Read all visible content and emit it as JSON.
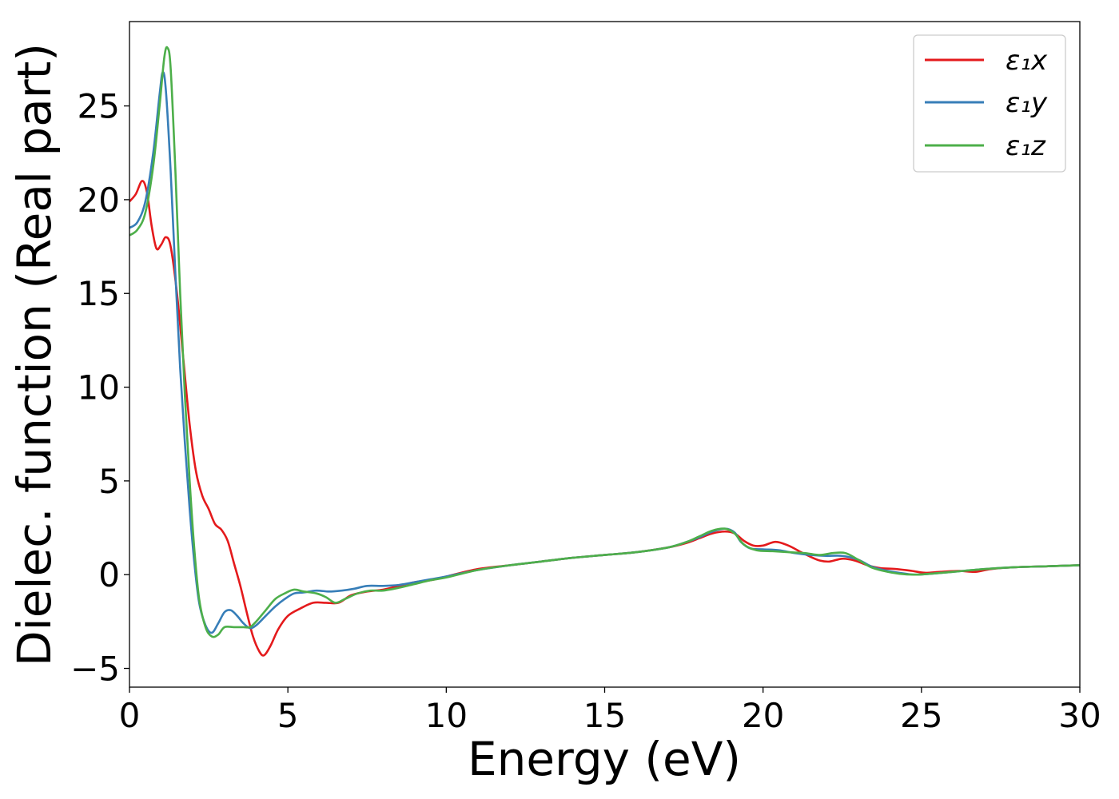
{
  "chart_data": {
    "type": "line",
    "xlabel": "Energy (eV)",
    "ylabel": "Dielec. function (Real part)",
    "xlim": [
      0,
      30
    ],
    "ylim": [
      -6,
      29.5
    ],
    "xticks": [
      0,
      5,
      10,
      15,
      20,
      25,
      30
    ],
    "xtick_labels": [
      "0",
      "5",
      "10",
      "15",
      "20",
      "25",
      "30"
    ],
    "yticks": [
      -5,
      0,
      5,
      10,
      15,
      20,
      25
    ],
    "ytick_labels": [
      "−5",
      "0",
      "5",
      "10",
      "15",
      "20",
      "25"
    ],
    "grid": false,
    "legend": "top-right",
    "series": [
      {
        "name": "ε₁x",
        "color": "#e41a1c",
        "points": [
          [
            0,
            19.9
          ],
          [
            0.2,
            20.3
          ],
          [
            0.4,
            21.0
          ],
          [
            0.55,
            20.4
          ],
          [
            0.7,
            18.6
          ],
          [
            0.85,
            17.4
          ],
          [
            1.0,
            17.6
          ],
          [
            1.15,
            18.0
          ],
          [
            1.3,
            17.5
          ],
          [
            1.5,
            15.0
          ],
          [
            1.7,
            11.5
          ],
          [
            1.9,
            8.0
          ],
          [
            2.1,
            5.5
          ],
          [
            2.3,
            4.2
          ],
          [
            2.5,
            3.5
          ],
          [
            2.7,
            2.7
          ],
          [
            2.9,
            2.4
          ],
          [
            3.1,
            1.8
          ],
          [
            3.3,
            0.6
          ],
          [
            3.5,
            -0.6
          ],
          [
            3.7,
            -2.0
          ],
          [
            3.9,
            -3.3
          ],
          [
            4.1,
            -4.1
          ],
          [
            4.25,
            -4.3
          ],
          [
            4.45,
            -3.8
          ],
          [
            4.7,
            -2.9
          ],
          [
            5.0,
            -2.2
          ],
          [
            5.4,
            -1.8
          ],
          [
            5.8,
            -1.5
          ],
          [
            6.2,
            -1.5
          ],
          [
            6.6,
            -1.5
          ],
          [
            7.0,
            -1.1
          ],
          [
            7.5,
            -0.9
          ],
          [
            8.0,
            -0.8
          ],
          [
            8.5,
            -0.6
          ],
          [
            9.0,
            -0.4
          ],
          [
            9.5,
            -0.3
          ],
          [
            10.0,
            -0.1
          ],
          [
            11.0,
            0.3
          ],
          [
            12.0,
            0.5
          ],
          [
            13.0,
            0.7
          ],
          [
            14.0,
            0.9
          ],
          [
            15.0,
            1.05
          ],
          [
            16.0,
            1.2
          ],
          [
            17.0,
            1.45
          ],
          [
            17.6,
            1.7
          ],
          [
            18.0,
            1.95
          ],
          [
            18.4,
            2.2
          ],
          [
            18.8,
            2.3
          ],
          [
            19.1,
            2.2
          ],
          [
            19.4,
            1.8
          ],
          [
            19.7,
            1.55
          ],
          [
            20.0,
            1.55
          ],
          [
            20.4,
            1.75
          ],
          [
            20.8,
            1.55
          ],
          [
            21.2,
            1.2
          ],
          [
            21.5,
            0.95
          ],
          [
            21.8,
            0.75
          ],
          [
            22.1,
            0.7
          ],
          [
            22.5,
            0.85
          ],
          [
            22.9,
            0.75
          ],
          [
            23.3,
            0.5
          ],
          [
            23.7,
            0.35
          ],
          [
            24.2,
            0.3
          ],
          [
            24.7,
            0.2
          ],
          [
            25.1,
            0.1
          ],
          [
            25.6,
            0.15
          ],
          [
            26.2,
            0.2
          ],
          [
            26.7,
            0.15
          ],
          [
            27.2,
            0.3
          ],
          [
            28.0,
            0.4
          ],
          [
            29.0,
            0.45
          ],
          [
            30.0,
            0.5
          ]
        ]
      },
      {
        "name": "ε₁y",
        "color": "#377eb8",
        "points": [
          [
            0,
            18.5
          ],
          [
            0.25,
            18.8
          ],
          [
            0.5,
            19.9
          ],
          [
            0.75,
            22.5
          ],
          [
            0.95,
            25.6
          ],
          [
            1.05,
            26.8
          ],
          [
            1.15,
            25.8
          ],
          [
            1.3,
            21.5
          ],
          [
            1.45,
            16.0
          ],
          [
            1.6,
            11.0
          ],
          [
            1.75,
            7.0
          ],
          [
            1.9,
            3.5
          ],
          [
            2.05,
            0.6
          ],
          [
            2.2,
            -1.5
          ],
          [
            2.4,
            -2.7
          ],
          [
            2.6,
            -3.1
          ],
          [
            2.8,
            -2.6
          ],
          [
            3.0,
            -2.0
          ],
          [
            3.2,
            -1.9
          ],
          [
            3.4,
            -2.2
          ],
          [
            3.6,
            -2.6
          ],
          [
            3.8,
            -2.85
          ],
          [
            4.0,
            -2.7
          ],
          [
            4.3,
            -2.2
          ],
          [
            4.6,
            -1.7
          ],
          [
            4.9,
            -1.3
          ],
          [
            5.2,
            -1.0
          ],
          [
            5.5,
            -0.95
          ],
          [
            5.9,
            -0.85
          ],
          [
            6.3,
            -0.9
          ],
          [
            6.7,
            -0.85
          ],
          [
            7.1,
            -0.75
          ],
          [
            7.5,
            -0.6
          ],
          [
            8.0,
            -0.6
          ],
          [
            8.5,
            -0.55
          ],
          [
            9.0,
            -0.4
          ],
          [
            9.5,
            -0.25
          ],
          [
            10.0,
            -0.1
          ],
          [
            11.0,
            0.25
          ],
          [
            12.0,
            0.5
          ],
          [
            13.0,
            0.7
          ],
          [
            14.0,
            0.9
          ],
          [
            15.0,
            1.05
          ],
          [
            16.0,
            1.2
          ],
          [
            17.0,
            1.45
          ],
          [
            17.6,
            1.75
          ],
          [
            18.0,
            2.0
          ],
          [
            18.4,
            2.3
          ],
          [
            18.8,
            2.45
          ],
          [
            19.1,
            2.25
          ],
          [
            19.3,
            1.75
          ],
          [
            19.6,
            1.4
          ],
          [
            20.0,
            1.35
          ],
          [
            20.5,
            1.3
          ],
          [
            21.0,
            1.15
          ],
          [
            21.5,
            1.05
          ],
          [
            22.0,
            1.0
          ],
          [
            22.5,
            1.0
          ],
          [
            23.0,
            0.8
          ],
          [
            23.4,
            0.45
          ],
          [
            23.8,
            0.25
          ],
          [
            24.3,
            0.1
          ],
          [
            24.8,
            0.0
          ],
          [
            25.3,
            0.05
          ],
          [
            26.0,
            0.15
          ],
          [
            27.0,
            0.3
          ],
          [
            28.0,
            0.4
          ],
          [
            29.0,
            0.45
          ],
          [
            30.0,
            0.5
          ]
        ]
      },
      {
        "name": "ε₁z",
        "color": "#4daf4a",
        "points": [
          [
            0,
            18.1
          ],
          [
            0.25,
            18.4
          ],
          [
            0.5,
            19.3
          ],
          [
            0.75,
            21.8
          ],
          [
            0.95,
            25.0
          ],
          [
            1.1,
            27.6
          ],
          [
            1.2,
            28.1
          ],
          [
            1.3,
            27.0
          ],
          [
            1.45,
            21.5
          ],
          [
            1.6,
            15.0
          ],
          [
            1.75,
            9.5
          ],
          [
            1.9,
            5.0
          ],
          [
            2.05,
            1.3
          ],
          [
            2.2,
            -1.3
          ],
          [
            2.4,
            -2.8
          ],
          [
            2.6,
            -3.3
          ],
          [
            2.8,
            -3.2
          ],
          [
            3.0,
            -2.8
          ],
          [
            3.3,
            -2.8
          ],
          [
            3.6,
            -2.8
          ],
          [
            3.8,
            -2.8
          ],
          [
            4.0,
            -2.5
          ],
          [
            4.3,
            -1.9
          ],
          [
            4.6,
            -1.3
          ],
          [
            4.9,
            -1.0
          ],
          [
            5.2,
            -0.8
          ],
          [
            5.5,
            -0.9
          ],
          [
            5.9,
            -1.0
          ],
          [
            6.2,
            -1.2
          ],
          [
            6.5,
            -1.5
          ],
          [
            6.8,
            -1.3
          ],
          [
            7.2,
            -1.0
          ],
          [
            7.6,
            -0.85
          ],
          [
            8.0,
            -0.85
          ],
          [
            8.5,
            -0.7
          ],
          [
            9.0,
            -0.5
          ],
          [
            9.5,
            -0.3
          ],
          [
            10.0,
            -0.15
          ],
          [
            11.0,
            0.25
          ],
          [
            12.0,
            0.5
          ],
          [
            13.0,
            0.7
          ],
          [
            14.0,
            0.9
          ],
          [
            15.0,
            1.05
          ],
          [
            16.0,
            1.2
          ],
          [
            17.0,
            1.45
          ],
          [
            17.6,
            1.75
          ],
          [
            18.0,
            2.05
          ],
          [
            18.4,
            2.35
          ],
          [
            18.8,
            2.45
          ],
          [
            19.1,
            2.2
          ],
          [
            19.4,
            1.6
          ],
          [
            19.8,
            1.3
          ],
          [
            20.3,
            1.25
          ],
          [
            20.8,
            1.2
          ],
          [
            21.3,
            1.15
          ],
          [
            21.8,
            1.05
          ],
          [
            22.2,
            1.15
          ],
          [
            22.6,
            1.15
          ],
          [
            23.0,
            0.8
          ],
          [
            23.4,
            0.4
          ],
          [
            23.8,
            0.2
          ],
          [
            24.3,
            0.05
          ],
          [
            24.8,
            0.0
          ],
          [
            25.3,
            0.05
          ],
          [
            26.0,
            0.15
          ],
          [
            27.0,
            0.3
          ],
          [
            28.0,
            0.4
          ],
          [
            29.0,
            0.45
          ],
          [
            30.0,
            0.5
          ]
        ]
      }
    ]
  }
}
